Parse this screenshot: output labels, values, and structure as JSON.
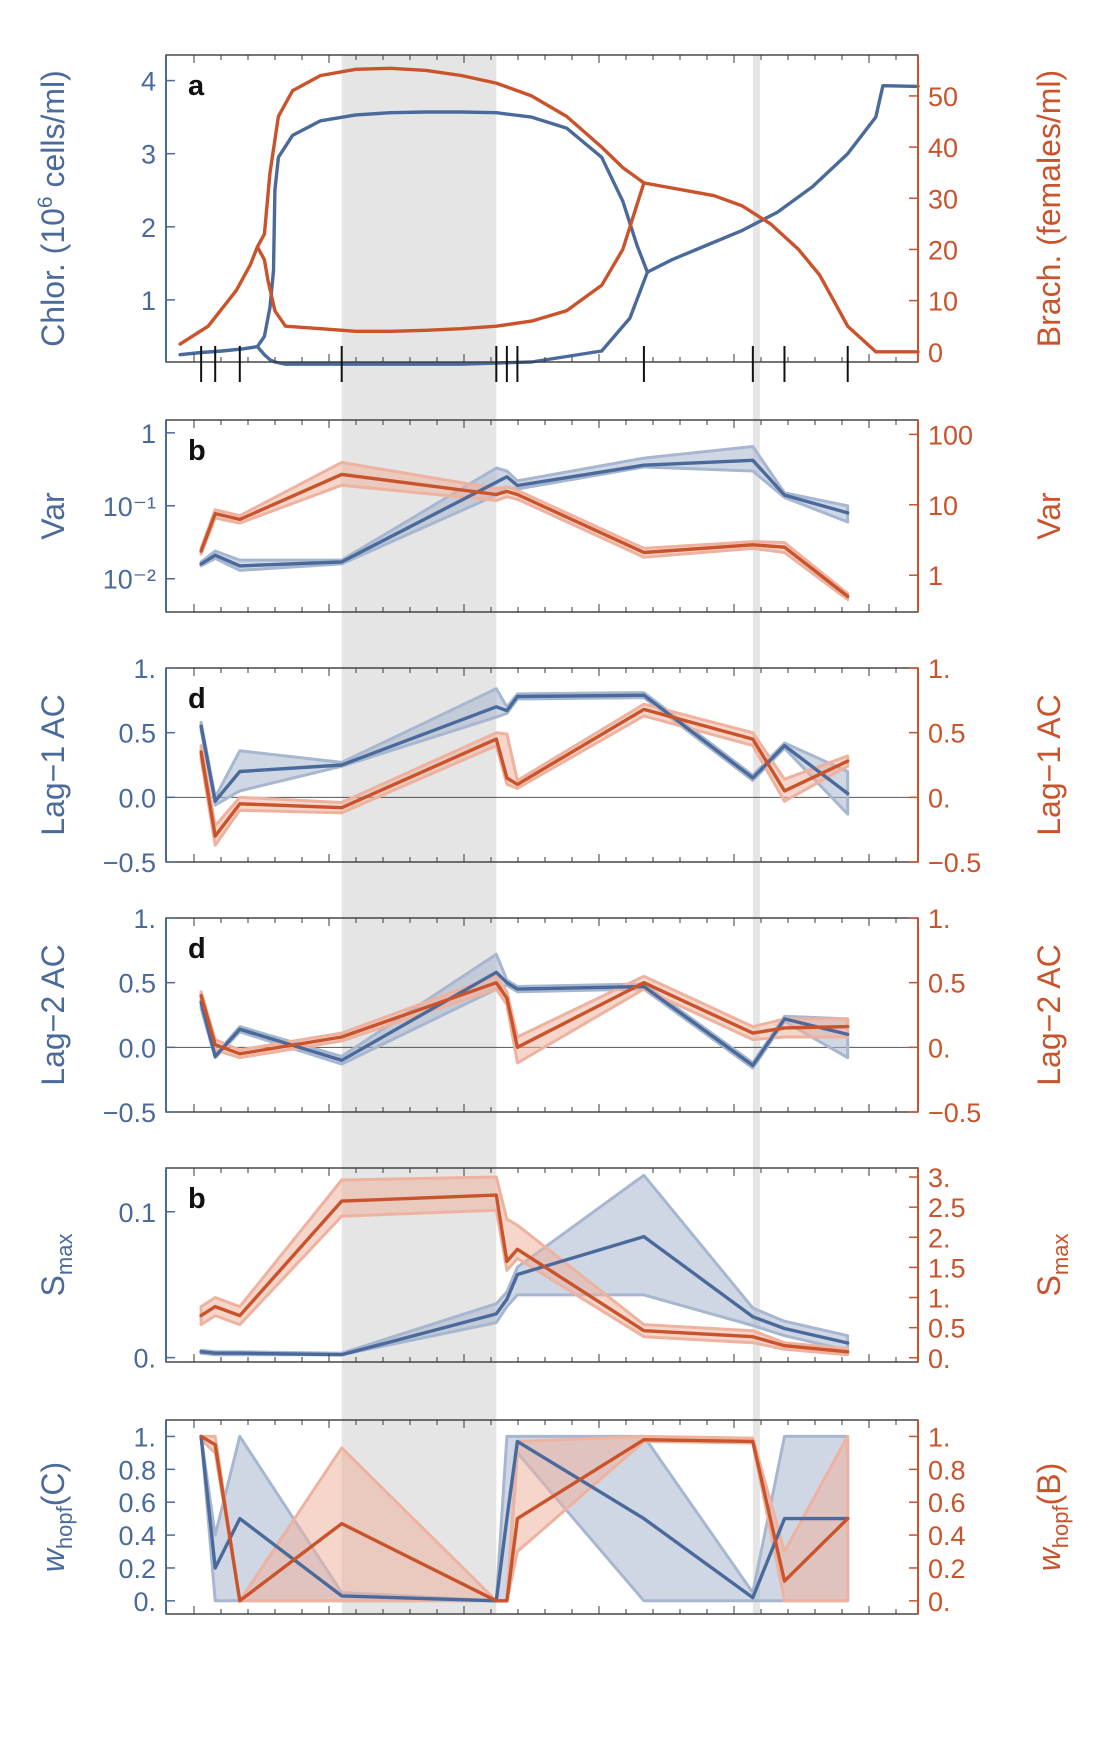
{
  "colors": {
    "chlor": "#4a6a9b",
    "brach": "#c9532a",
    "chlor_band": "#a7b7d0",
    "brach_band": "#eeb3a0",
    "shade": "#e5e5e5",
    "frame": "#3a3a3a"
  },
  "figure": {
    "shaded_regions_x": [
      [
        0.23,
        0.45
      ],
      [
        0.815,
        0.825
      ]
    ]
  },
  "chart_data": [
    {
      "type": "line",
      "panel_letter": "a",
      "ylabel_left": "Chlor. (10⁶ cells/ml)",
      "ylabel_right": "Brach. (females/ml)",
      "ylim_left": [
        0.15,
        4.35
      ],
      "ylim_right": [
        -2,
        58
      ],
      "yticks_left": [
        1,
        2,
        3,
        4
      ],
      "yticks_right": [
        0,
        10,
        20,
        30,
        40,
        50
      ],
      "event_ticks_x": [
        0.03,
        0.05,
        0.085,
        0.23,
        0.45,
        0.465,
        0.48,
        0.66,
        0.815,
        0.86,
        0.95
      ],
      "series": [
        {
          "role": "chlor-upper",
          "axis": "left",
          "x": [
            0.0,
            0.03,
            0.06,
            0.09,
            0.11,
            0.12,
            0.128,
            0.133,
            0.135,
            0.14,
            0.16,
            0.2,
            0.25,
            0.3,
            0.35,
            0.4,
            0.45,
            0.5,
            0.55,
            0.6,
            0.63,
            0.65,
            0.665,
            0.7,
            0.75,
            0.8,
            0.85,
            0.9,
            0.95,
            0.99,
            1.0,
            1.05
          ],
          "y": [
            0.25,
            0.28,
            0.3,
            0.33,
            0.36,
            0.5,
            0.9,
            1.4,
            2.5,
            2.95,
            3.25,
            3.45,
            3.53,
            3.56,
            3.57,
            3.57,
            3.56,
            3.5,
            3.35,
            2.95,
            2.35,
            1.75,
            1.38,
            1.55,
            1.75,
            1.95,
            2.2,
            2.55,
            3.0,
            3.5,
            3.93,
            3.92
          ]
        },
        {
          "role": "chlor-lower",
          "axis": "left",
          "x": [
            0.11,
            0.12,
            0.128,
            0.135,
            0.15,
            0.2,
            0.3,
            0.4,
            0.5,
            0.6,
            0.64,
            0.665
          ],
          "y": [
            0.36,
            0.25,
            0.18,
            0.15,
            0.12,
            0.12,
            0.12,
            0.12,
            0.15,
            0.3,
            0.75,
            1.38
          ]
        },
        {
          "role": "brach-upper",
          "axis": "right",
          "x": [
            0.0,
            0.04,
            0.08,
            0.1,
            0.11,
            0.12,
            0.128,
            0.14,
            0.16,
            0.2,
            0.25,
            0.3,
            0.35,
            0.4,
            0.45,
            0.5,
            0.55,
            0.6,
            0.63,
            0.66,
            0.68,
            0.72,
            0.76,
            0.8,
            0.84,
            0.88,
            0.91,
            0.93,
            0.95,
            0.99,
            1.05
          ],
          "y": [
            1.5,
            5,
            12,
            17,
            20.5,
            23,
            35,
            46,
            51,
            54,
            55.2,
            55.4,
            55,
            54,
            52.5,
            50,
            46,
            40,
            36,
            33,
            32.5,
            31.5,
            30.5,
            28.5,
            25,
            20,
            15,
            10,
            5,
            0,
            0
          ]
        },
        {
          "role": "brach-lower",
          "axis": "right",
          "x": [
            0.11,
            0.12,
            0.125,
            0.135,
            0.15,
            0.2,
            0.25,
            0.3,
            0.35,
            0.4,
            0.45,
            0.5,
            0.55,
            0.6,
            0.63,
            0.66
          ],
          "y": [
            20.5,
            18,
            14,
            8,
            5,
            4.5,
            4,
            4,
            4.2,
            4.5,
            5,
            6,
            8,
            13,
            20,
            33
          ]
        }
      ]
    },
    {
      "type": "line",
      "panel_letter": "b",
      "ylabel_left": "Var",
      "ylabel_right": "Var",
      "ylim_left": [
        0.0035,
        1.5
      ],
      "ylim_right": [
        0.3,
        160
      ],
      "yscale": "log",
      "yticks_left": [
        1,
        0.1,
        0.01
      ],
      "yticks_left_labels": [
        "1",
        "10⁻¹",
        "10⁻²"
      ],
      "yticks_right": [
        100,
        10,
        1
      ],
      "yticks_right_labels": [
        "100",
        "10",
        "1"
      ],
      "series": [
        {
          "role": "chlor",
          "axis": "left",
          "x": [
            0.03,
            0.05,
            0.085,
            0.23,
            0.45,
            0.465,
            0.48,
            0.66,
            0.815,
            0.86,
            0.95
          ],
          "y": [
            0.016,
            0.021,
            0.015,
            0.017,
            0.21,
            0.25,
            0.19,
            0.36,
            0.42,
            0.14,
            0.08
          ],
          "lo": [
            0.015,
            0.019,
            0.013,
            0.016,
            0.14,
            0.18,
            0.17,
            0.34,
            0.3,
            0.13,
            0.06
          ],
          "hi": [
            0.017,
            0.024,
            0.018,
            0.018,
            0.33,
            0.3,
            0.22,
            0.45,
            0.65,
            0.15,
            0.1
          ]
        },
        {
          "role": "brach",
          "axis": "right",
          "x": [
            0.03,
            0.05,
            0.085,
            0.23,
            0.45,
            0.465,
            0.48,
            0.66,
            0.815,
            0.86,
            0.95
          ],
          "y": [
            2.2,
            7.5,
            6.2,
            27,
            14,
            15.5,
            14,
            2.1,
            2.7,
            2.5,
            0.5
          ],
          "lo": [
            2.0,
            6.5,
            5.5,
            19,
            11.5,
            13,
            12,
            1.8,
            2.4,
            2.1,
            0.45
          ],
          "hi": [
            2.4,
            8.5,
            7,
            40,
            17,
            18,
            16,
            2.4,
            3.0,
            2.9,
            0.55
          ]
        }
      ]
    },
    {
      "type": "line",
      "panel_letter": "d",
      "ylabel_left": "Lag−1 AC",
      "ylabel_right": "Lag−1 AC",
      "ylim_left": [
        -0.5,
        1.0
      ],
      "ylim_right": [
        -0.5,
        1.0
      ],
      "yticks_left": [
        1.0,
        0.5,
        0.0,
        -0.5
      ],
      "yticks_left_labels": [
        "1.",
        "0.5",
        "0.0",
        "−0.5"
      ],
      "yticks_right": [
        1.0,
        0.5,
        0.0,
        -0.5
      ],
      "yticks_right_labels": [
        "1.",
        "0.5",
        "0.",
        "−0.5"
      ],
      "zero_line": true,
      "series": [
        {
          "role": "chlor",
          "axis": "left",
          "x": [
            0.03,
            0.05,
            0.085,
            0.23,
            0.45,
            0.465,
            0.48,
            0.66,
            0.815,
            0.86,
            0.95
          ],
          "y": [
            0.55,
            -0.03,
            0.2,
            0.25,
            0.7,
            0.67,
            0.78,
            0.79,
            0.15,
            0.4,
            0.03
          ],
          "lo": [
            0.52,
            -0.06,
            0.05,
            0.24,
            0.62,
            0.65,
            0.76,
            0.77,
            0.13,
            0.38,
            -0.13
          ],
          "hi": [
            0.58,
            0.0,
            0.36,
            0.27,
            0.84,
            0.7,
            0.8,
            0.81,
            0.17,
            0.42,
            0.2
          ]
        },
        {
          "role": "brach",
          "axis": "right",
          "x": [
            0.03,
            0.05,
            0.085,
            0.23,
            0.45,
            0.465,
            0.48,
            0.66,
            0.815,
            0.86,
            0.95
          ],
          "y": [
            0.35,
            -0.3,
            -0.05,
            -0.08,
            0.45,
            0.15,
            0.1,
            0.68,
            0.45,
            0.05,
            0.28
          ],
          "lo": [
            0.3,
            -0.37,
            -0.1,
            -0.12,
            0.4,
            0.1,
            0.07,
            0.63,
            0.4,
            -0.03,
            0.24
          ],
          "hi": [
            0.4,
            -0.22,
            0.0,
            -0.04,
            0.5,
            0.49,
            0.13,
            0.72,
            0.5,
            0.14,
            0.32
          ]
        }
      ]
    },
    {
      "type": "line",
      "panel_letter": "d",
      "ylabel_left": "Lag−2 AC",
      "ylabel_right": "Lag−2 AC",
      "ylim_left": [
        -0.5,
        1.0
      ],
      "ylim_right": [
        -0.5,
        1.0
      ],
      "yticks_left": [
        1.0,
        0.5,
        0.0,
        -0.5
      ],
      "yticks_left_labels": [
        "1.",
        "0.5",
        "0.0",
        "−0.5"
      ],
      "yticks_right": [
        1.0,
        0.5,
        0.0,
        -0.5
      ],
      "yticks_right_labels": [
        "1.",
        "0.5",
        "0.",
        "−0.5"
      ],
      "zero_line": true,
      "series": [
        {
          "role": "chlor",
          "axis": "left",
          "x": [
            0.03,
            0.05,
            0.085,
            0.23,
            0.45,
            0.465,
            0.48,
            0.66,
            0.815,
            0.86,
            0.95
          ],
          "y": [
            0.35,
            -0.07,
            0.14,
            -0.1,
            0.58,
            0.5,
            0.45,
            0.47,
            -0.14,
            0.22,
            0.1
          ],
          "lo": [
            0.3,
            -0.08,
            0.12,
            -0.13,
            0.45,
            0.48,
            0.43,
            0.45,
            -0.16,
            0.2,
            -0.08
          ],
          "hi": [
            0.4,
            -0.06,
            0.16,
            -0.07,
            0.72,
            0.52,
            0.47,
            0.49,
            -0.12,
            0.24,
            0.22
          ]
        },
        {
          "role": "brach",
          "axis": "right",
          "x": [
            0.03,
            0.05,
            0.085,
            0.23,
            0.45,
            0.465,
            0.48,
            0.66,
            0.815,
            0.86,
            0.95
          ],
          "y": [
            0.4,
            0.02,
            -0.05,
            0.08,
            0.5,
            0.38,
            0.0,
            0.5,
            0.11,
            0.15,
            0.16
          ],
          "lo": [
            0.37,
            -0.02,
            -0.08,
            0.05,
            0.45,
            0.33,
            -0.12,
            0.45,
            0.06,
            0.08,
            0.08
          ],
          "hi": [
            0.43,
            0.06,
            -0.02,
            0.11,
            0.55,
            0.43,
            0.08,
            0.55,
            0.16,
            0.22,
            0.22
          ]
        }
      ]
    },
    {
      "type": "line",
      "panel_letter": "b",
      "ylabel_left": "S_max",
      "ylabel_right": "S_max",
      "ylim_left": [
        -0.003,
        0.13
      ],
      "ylim_right": [
        -0.07,
        3.15
      ],
      "yticks_left": [
        0.1,
        0.0
      ],
      "yticks_left_labels": [
        "0.1",
        "0."
      ],
      "yticks_right": [
        3,
        2.5,
        2,
        1.5,
        1,
        0.5,
        0
      ],
      "yticks_right_labels": [
        "3.",
        "2.5",
        "2.",
        "1.5",
        "1.",
        "0.5",
        "0."
      ],
      "series": [
        {
          "role": "chlor",
          "axis": "left",
          "x": [
            0.03,
            0.05,
            0.085,
            0.23,
            0.45,
            0.465,
            0.48,
            0.66,
            0.815,
            0.86,
            0.95
          ],
          "y": [
            0.004,
            0.003,
            0.003,
            0.002,
            0.03,
            0.04,
            0.057,
            0.083,
            0.028,
            0.02,
            0.01
          ],
          "lo": [
            0.003,
            0.002,
            0.002,
            0.002,
            0.024,
            0.035,
            0.043,
            0.043,
            0.022,
            0.015,
            0.005
          ],
          "hi": [
            0.005,
            0.004,
            0.004,
            0.003,
            0.037,
            0.045,
            0.062,
            0.125,
            0.034,
            0.025,
            0.015
          ]
        },
        {
          "role": "brach",
          "axis": "right",
          "x": [
            0.03,
            0.05,
            0.085,
            0.23,
            0.45,
            0.465,
            0.48,
            0.66,
            0.815,
            0.86,
            0.95
          ],
          "y": [
            0.7,
            0.85,
            0.7,
            2.6,
            2.7,
            1.6,
            1.8,
            0.45,
            0.35,
            0.2,
            0.1
          ],
          "lo": [
            0.55,
            0.7,
            0.55,
            2.35,
            2.45,
            1.45,
            1.65,
            0.35,
            0.25,
            0.14,
            0.05
          ],
          "hi": [
            0.85,
            1.0,
            0.85,
            2.95,
            3.0,
            2.3,
            2.2,
            0.55,
            0.45,
            0.25,
            0.15
          ]
        }
      ]
    },
    {
      "type": "line",
      "panel_letter": "",
      "ylabel_left": "w_hopf(C)",
      "ylabel_right": "w_hopf(B)",
      "ylim_left": [
        -0.08,
        1.1
      ],
      "ylim_right": [
        -0.08,
        1.1
      ],
      "yticks_left": [
        1.0,
        0.8,
        0.6,
        0.4,
        0.2,
        0.0
      ],
      "yticks_left_labels": [
        "1.",
        "0.8",
        "0.6",
        "0.4",
        "0.2",
        "0."
      ],
      "yticks_right": [
        1.0,
        0.8,
        0.6,
        0.4,
        0.2,
        0.0
      ],
      "yticks_right_labels": [
        "1.",
        "0.8",
        "0.6",
        "0.4",
        "0.2",
        "0."
      ],
      "series": [
        {
          "role": "chlor",
          "axis": "left",
          "x": [
            0.03,
            0.05,
            0.085,
            0.23,
            0.45,
            0.465,
            0.48,
            0.66,
            0.815,
            0.86,
            0.95
          ],
          "y": [
            1.0,
            0.2,
            0.5,
            0.03,
            0.0,
            0.5,
            0.97,
            0.5,
            0.02,
            0.5,
            0.5
          ],
          "lo": [
            1.0,
            0.0,
            0.0,
            0.0,
            0.0,
            0.0,
            0.9,
            0.0,
            0.0,
            0.0,
            0.0
          ],
          "hi": [
            1.0,
            0.4,
            1.0,
            0.05,
            0.0,
            1.0,
            1.0,
            1.0,
            0.05,
            1.0,
            1.0
          ]
        },
        {
          "role": "brach",
          "axis": "right",
          "x": [
            0.03,
            0.05,
            0.085,
            0.23,
            0.45,
            0.465,
            0.48,
            0.66,
            0.815,
            0.86,
            0.95
          ],
          "y": [
            1.0,
            0.95,
            0.0,
            0.47,
            0.0,
            0.0,
            0.5,
            0.98,
            0.97,
            0.12,
            0.5
          ],
          "lo": [
            0.98,
            0.9,
            0.0,
            0.0,
            0.0,
            0.0,
            0.3,
            0.97,
            0.96,
            0.0,
            0.0
          ],
          "hi": [
            1.0,
            1.0,
            0.0,
            0.93,
            0.0,
            0.0,
            0.97,
            1.0,
            0.99,
            0.3,
            1.0
          ]
        }
      ]
    }
  ]
}
